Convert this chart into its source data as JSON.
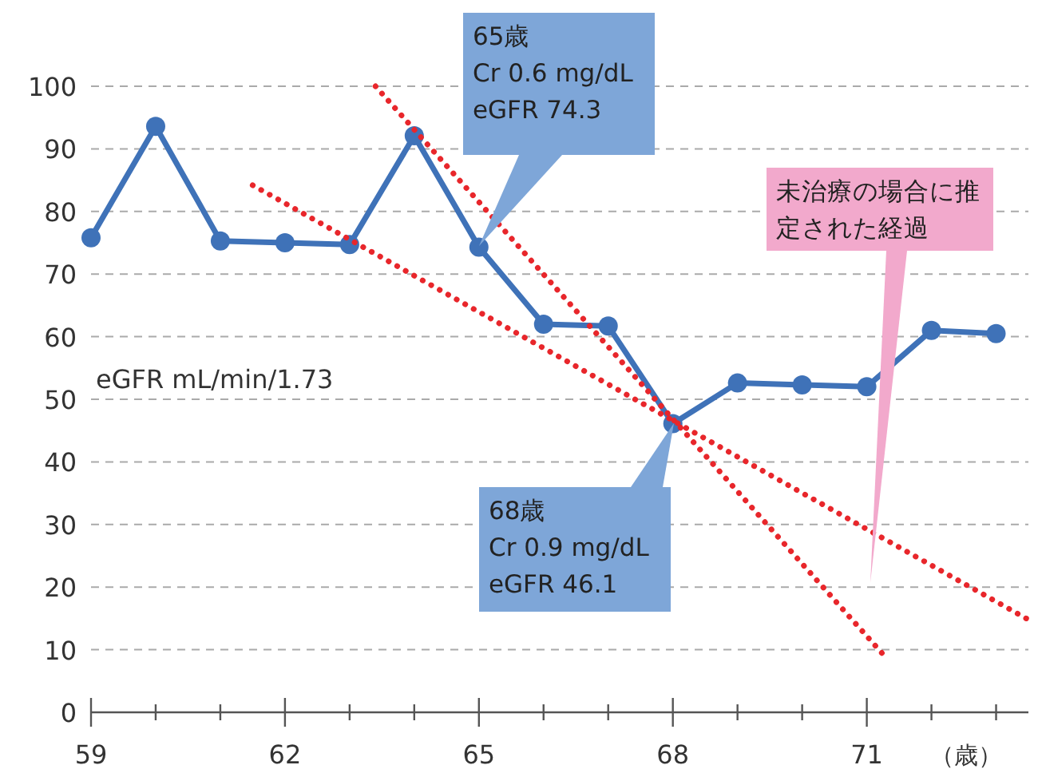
{
  "chart_data": {
    "type": "line",
    "xlabel": "（歳）",
    "ylabel": "eGFR mL/min/1.73",
    "xlim": [
      59,
      73.5
    ],
    "ylim": [
      0,
      100
    ],
    "xticks": [
      59,
      {
        "value": 60,
        "label": null
      },
      {
        "value": 61,
        "label": null
      },
      62,
      {
        "value": 63,
        "label": null
      },
      {
        "value": 64,
        "label": null
      },
      65,
      {
        "value": 66,
        "label": null
      },
      {
        "value": 67,
        "label": null
      },
      68,
      {
        "value": 69,
        "label": null
      },
      {
        "value": 70,
        "label": null
      },
      71,
      {
        "value": 72,
        "label": null
      },
      {
        "value": 73,
        "label": null
      }
    ],
    "yticks": [
      0,
      10,
      20,
      30,
      40,
      50,
      60,
      70,
      80,
      90,
      100
    ],
    "grid": "y",
    "x": [
      59,
      60,
      61,
      62,
      63,
      64,
      65,
      66,
      67,
      68,
      69,
      70,
      71,
      72,
      73
    ],
    "series": [
      {
        "color": "#3f72b8",
        "marker": "circle",
        "line_style": "solid",
        "values": [
          75.8,
          93.6,
          75.3,
          75.0,
          74.7,
          92.1,
          74.3,
          62.0,
          61.7,
          46.1,
          52.6,
          52.3,
          52.0,
          61.0,
          60.5
        ]
      },
      {
        "color": "#e8262b",
        "marker": "none",
        "line_style": "dotted",
        "x": [
          63.4,
          71.3
        ],
        "values": [
          100,
          8.7
        ]
      },
      {
        "color": "#e8262b",
        "marker": "none",
        "line_style": "dotted",
        "x": [
          61.5,
          73.5
        ],
        "values": [
          84.2,
          14.8
        ]
      }
    ],
    "annotations": [
      "65歳\nCr 0.6 mg/dL\neGFR 74.3",
      "68歳\nCr 0.9 mg/dL\neGFR 46.1",
      "未治療の場合に推定された経過"
    ]
  }
}
